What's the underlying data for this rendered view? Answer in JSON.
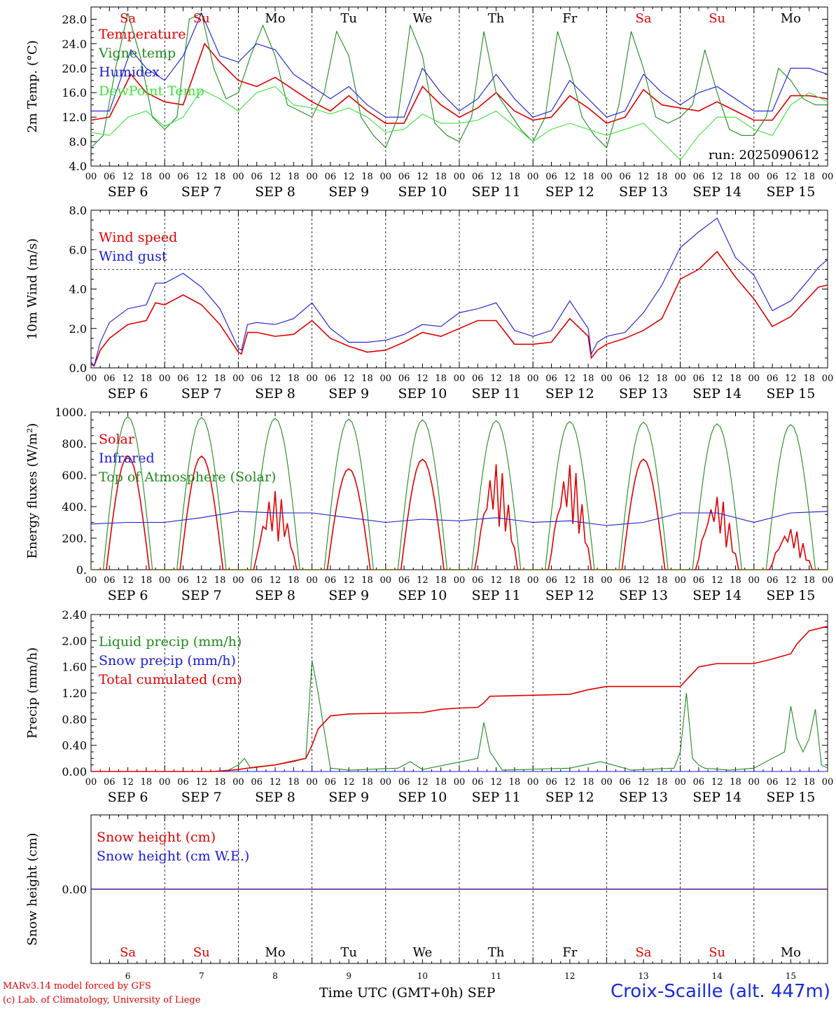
{
  "footer": {
    "credit_line1": "MARv3.14 model forced by GFS",
    "credit_line2": "(c) Lab. of Climatology, University of Liege",
    "xaxis_title": "Time UTC (GMT+0h) SEP",
    "station": "Croix-Scaille (alt. 447m)"
  },
  "colors": {
    "red": "#e00000",
    "green": "#1f8a1f",
    "blue": "#1a1ad6",
    "lightgreen": "#3ee23e"
  },
  "chart_data": [
    {
      "type": "line",
      "ylabel": "2m Temp. (°C)",
      "ylim": [
        4,
        30
      ],
      "yticks": [
        "4.0",
        "8.0",
        "12.0",
        "16.0",
        "20.0",
        "24.0",
        "28.0"
      ],
      "annotation": "run: 2025090612",
      "day_names": [
        "Sa",
        "Su",
        "Mo",
        "Tu",
        "We",
        "Th",
        "Fr",
        "Sa",
        "Su",
        "Mo"
      ],
      "x_ticks": [
        "00",
        "06",
        "12",
        "18"
      ],
      "date_labels": [
        "SEP 6",
        "SEP 7",
        "SEP 8",
        "SEP 9",
        "SEP 10",
        "SEP 11",
        "SEP 12",
        "SEP 13",
        "SEP 14",
        "SEP 15"
      ],
      "x_unit": "hours since SEP 6 00 UTC",
      "series": [
        {
          "name": "Temperature",
          "color": "red",
          "x": [
            0,
            6,
            13,
            18,
            24,
            30,
            37,
            42,
            48,
            54,
            60,
            66,
            72,
            78,
            84,
            90,
            96,
            102,
            108,
            114,
            120,
            126,
            132,
            138,
            144,
            150,
            156,
            162,
            168,
            174,
            180,
            186,
            192,
            198,
            204,
            210,
            216,
            222,
            228,
            234,
            240
          ],
          "y": [
            11.5,
            12,
            19,
            16,
            14.5,
            14,
            24,
            21,
            18,
            17,
            18.5,
            16.5,
            14.5,
            13,
            15.5,
            13,
            11,
            11,
            17,
            14,
            12,
            13.5,
            16,
            13,
            11.5,
            12,
            15.5,
            13.5,
            11,
            12,
            16.5,
            14,
            13.5,
            13,
            14.5,
            13,
            11.5,
            11.5,
            15.5,
            15.5,
            15
          ]
        },
        {
          "name": "Vigne temp",
          "color": "green",
          "x": [
            0,
            4,
            8,
            12,
            16,
            20,
            24,
            28,
            32,
            36,
            40,
            44,
            48,
            52,
            56,
            60,
            64,
            68,
            72,
            76,
            80,
            84,
            88,
            92,
            96,
            100,
            104,
            108,
            112,
            116,
            120,
            124,
            128,
            132,
            136,
            140,
            144,
            148,
            152,
            156,
            160,
            164,
            168,
            172,
            176,
            180,
            184,
            188,
            192,
            196,
            200,
            204,
            208,
            212,
            216,
            220,
            224,
            228,
            232,
            236,
            240
          ],
          "y": [
            7,
            9,
            20,
            29,
            22,
            12,
            10,
            12,
            28,
            29,
            20,
            15,
            16,
            22,
            27,
            22,
            14,
            13,
            12,
            16,
            26,
            22,
            12,
            9,
            7,
            12,
            27,
            22,
            11,
            9,
            8,
            12,
            26,
            16,
            13,
            10,
            8,
            12,
            26,
            20,
            12,
            9,
            7,
            14,
            26,
            20,
            12,
            11,
            12,
            14,
            23,
            16,
            10,
            9,
            9,
            12,
            20,
            18,
            15,
            14,
            14
          ]
        },
        {
          "name": "Humidex",
          "color": "blue",
          "x": [
            0,
            6,
            13,
            18,
            24,
            30,
            36,
            42,
            48,
            54,
            60,
            66,
            72,
            78,
            84,
            90,
            96,
            102,
            108,
            114,
            120,
            126,
            132,
            138,
            144,
            150,
            156,
            162,
            168,
            174,
            180,
            186,
            192,
            198,
            204,
            210,
            216,
            222,
            228,
            234,
            240
          ],
          "y": [
            13,
            13,
            23,
            20,
            18,
            22,
            29,
            22,
            21,
            24,
            23,
            19,
            17,
            15,
            17,
            14,
            12,
            12,
            20,
            16,
            13,
            15,
            19,
            15,
            12,
            13,
            18,
            15,
            12,
            13,
            19,
            16,
            14,
            16,
            17,
            15,
            13,
            13,
            20,
            20,
            19
          ]
        },
        {
          "name": "DewPoint Temp",
          "color": "lightgreen",
          "x": [
            0,
            6,
            12,
            18,
            24,
            30,
            36,
            42,
            48,
            54,
            60,
            66,
            72,
            78,
            84,
            90,
            96,
            102,
            108,
            114,
            120,
            126,
            132,
            138,
            144,
            150,
            156,
            162,
            168,
            174,
            180,
            186,
            192,
            198,
            204,
            210,
            216,
            222,
            228,
            234,
            240
          ],
          "y": [
            9.5,
            9,
            12,
            13,
            10.5,
            12,
            16.5,
            15,
            13,
            16,
            17,
            14,
            13.5,
            12.5,
            13.5,
            12,
            9.5,
            10,
            12.5,
            11,
            11,
            11.5,
            13,
            10.5,
            8,
            10,
            11,
            10,
            9,
            10,
            11,
            8,
            5,
            9,
            12,
            12,
            10,
            9,
            14,
            16,
            14.5
          ]
        }
      ]
    },
    {
      "type": "line",
      "ylabel": "10m Wind (m/s)",
      "ylim": [
        0,
        8
      ],
      "yticks": [
        "0.0",
        "2.0",
        "4.0",
        "6.0",
        "8.0"
      ],
      "threshold": 5,
      "date_labels": [
        "SEP 6",
        "SEP 7",
        "SEP 8",
        "SEP 9",
        "SEP 10",
        "SEP 11",
        "SEP 12",
        "SEP 13",
        "SEP 14",
        "SEP 15"
      ],
      "series": [
        {
          "name": "Wind speed",
          "color": "red",
          "x": [
            0,
            1,
            3,
            6,
            12,
            18,
            21,
            24,
            30,
            36,
            42,
            48,
            49,
            51,
            54,
            60,
            66,
            72,
            78,
            84,
            90,
            96,
            102,
            108,
            114,
            120,
            126,
            132,
            138,
            144,
            150,
            156,
            162,
            163,
            165,
            168,
            174,
            180,
            186,
            192,
            198,
            204,
            210,
            216,
            222,
            228,
            234,
            237,
            240
          ],
          "y": [
            0.2,
            0.1,
            0.9,
            1.5,
            2.2,
            2.4,
            3.3,
            3.2,
            3.7,
            3.2,
            2.2,
            0.8,
            0.7,
            1.8,
            1.8,
            1.6,
            1.7,
            2.4,
            1.5,
            1.1,
            0.8,
            0.9,
            1.3,
            1.8,
            1.6,
            2.0,
            2.4,
            2.4,
            1.2,
            1.2,
            1.3,
            2.5,
            1.6,
            0.5,
            0.9,
            1.2,
            1.5,
            1.9,
            2.5,
            4.5,
            5.0,
            5.9,
            4.6,
            3.5,
            2.1,
            2.6,
            3.6,
            4.1,
            4.2
          ]
        },
        {
          "name": "Wind gust",
          "color": "blue",
          "x": [
            0,
            1,
            3,
            6,
            12,
            18,
            21,
            24,
            30,
            36,
            42,
            48,
            49,
            51,
            54,
            60,
            66,
            72,
            78,
            84,
            90,
            96,
            102,
            108,
            114,
            120,
            126,
            132,
            138,
            144,
            150,
            156,
            162,
            163,
            165,
            168,
            174,
            180,
            186,
            192,
            198,
            204,
            210,
            216,
            222,
            228,
            234,
            237,
            240
          ],
          "y": [
            0.3,
            0.1,
            1.3,
            2.3,
            3.0,
            3.2,
            4.3,
            4.3,
            4.8,
            4.1,
            3.0,
            1.0,
            0.9,
            2.2,
            2.3,
            2.2,
            2.5,
            3.3,
            2.0,
            1.3,
            1.3,
            1.4,
            1.7,
            2.2,
            2.1,
            2.8,
            3.0,
            3.3,
            1.9,
            1.6,
            1.9,
            3.4,
            2.0,
            0.7,
            1.3,
            1.6,
            1.8,
            2.8,
            4.2,
            6.1,
            6.9,
            7.6,
            5.6,
            4.7,
            2.9,
            3.4,
            4.5,
            5.1,
            5.5
          ]
        }
      ]
    },
    {
      "type": "line",
      "ylabel": "Energy fluxes (W/m²)",
      "ylim": [
        0,
        1000
      ],
      "yticks": [
        "0.",
        "200.",
        "400.",
        "600.",
        "800.",
        "1000."
      ],
      "date_labels": [
        "SEP 6",
        "SEP 7",
        "SEP 8",
        "SEP 9",
        "SEP 10",
        "SEP 11",
        "SEP 12",
        "SEP 13",
        "SEP 14",
        "SEP 15"
      ],
      "series": [
        {
          "name": "Solar",
          "color": "red",
          "day_peaks": [
            720,
            720,
            500,
            640,
            700,
            680,
            680,
            700,
            480,
            270
          ]
        },
        {
          "name": "Infrared",
          "color": "blue",
          "x": [
            0,
            12,
            24,
            36,
            48,
            60,
            72,
            84,
            96,
            108,
            120,
            132,
            144,
            156,
            168,
            180,
            192,
            204,
            216,
            228,
            240
          ],
          "y": [
            290,
            300,
            300,
            330,
            370,
            360,
            360,
            330,
            300,
            320,
            310,
            330,
            300,
            310,
            280,
            300,
            360,
            360,
            300,
            360,
            370
          ]
        },
        {
          "name": "Top of Atmosphere (Solar)",
          "color": "green",
          "day_peaks": [
            970,
            965,
            960,
            955,
            950,
            945,
            940,
            935,
            925,
            920
          ]
        }
      ]
    },
    {
      "type": "line",
      "ylabel": "Precip (mm/h)",
      "ylim": [
        0,
        2.4
      ],
      "yticks": [
        "0.00",
        "0.40",
        "0.80",
        "1.20",
        "1.60",
        "2.00",
        "2.40"
      ],
      "date_labels": [
        "SEP 6",
        "SEP 7",
        "SEP 8",
        "SEP 9",
        "SEP 10",
        "SEP 11",
        "SEP 12",
        "SEP 13",
        "SEP 14",
        "SEP 15"
      ],
      "series": [
        {
          "name": "Liquid precip (mm/h)",
          "color": "green",
          "x": [
            0,
            44,
            46,
            48,
            50,
            52,
            60,
            66,
            70,
            72,
            74,
            78,
            84,
            100,
            104,
            108,
            126,
            128,
            130,
            134,
            156,
            166,
            170,
            176,
            190,
            192,
            194,
            196,
            198,
            200,
            208,
            216,
            222,
            226,
            228,
            230,
            232,
            234,
            236,
            238,
            240
          ],
          "y": [
            0,
            0,
            0.05,
            0.1,
            0.2,
            0.05,
            0.1,
            0.15,
            0.2,
            1.7,
            1.2,
            0.05,
            0.02,
            0.05,
            0.15,
            0.03,
            0.2,
            0.75,
            0.3,
            0.02,
            0.05,
            0.15,
            0.1,
            0.02,
            0.05,
            0.3,
            1.2,
            0.2,
            0.1,
            0.05,
            0.02,
            0.05,
            0.2,
            0.3,
            1.0,
            0.5,
            0.3,
            0.5,
            0.95,
            0.1,
            0.05
          ]
        },
        {
          "name": "Snow precip (mm/h)",
          "color": "blue",
          "x": [
            0,
            240
          ],
          "y": [
            0,
            0
          ]
        },
        {
          "name": "Total cumulated (cm)",
          "color": "red",
          "x": [
            0,
            40,
            48,
            54,
            60,
            70,
            72,
            74,
            78,
            84,
            108,
            114,
            120,
            126,
            128,
            130,
            156,
            162,
            168,
            192,
            194,
            198,
            204,
            216,
            222,
            228,
            230,
            234,
            240
          ],
          "y": [
            0,
            0,
            0.03,
            0.07,
            0.1,
            0.2,
            0.4,
            0.65,
            0.85,
            0.88,
            0.9,
            0.95,
            0.97,
            0.98,
            1.05,
            1.15,
            1.18,
            1.25,
            1.3,
            1.3,
            1.4,
            1.6,
            1.65,
            1.65,
            1.72,
            1.8,
            1.95,
            2.15,
            2.22
          ]
        }
      ]
    },
    {
      "type": "line",
      "ylabel": "Snow height (cm)",
      "ylim": [
        -1,
        1
      ],
      "yticks": [
        "0.00"
      ],
      "day_names": [
        "Sa",
        "Su",
        "Mo",
        "Tu",
        "We",
        "Th",
        "Fr",
        "Sa",
        "Su",
        "Mo"
      ],
      "day_numbers": [
        "6",
        "7",
        "8",
        "9",
        "10",
        "11",
        "12",
        "13",
        "14",
        "15"
      ],
      "series": [
        {
          "name": "Snow height (cm)",
          "color": "red",
          "x": [
            0,
            240
          ],
          "y": [
            0,
            0
          ]
        },
        {
          "name": "Snow height (cm W.E.)",
          "color": "blue",
          "x": [
            0,
            240
          ],
          "y": [
            0,
            0
          ]
        }
      ]
    }
  ]
}
